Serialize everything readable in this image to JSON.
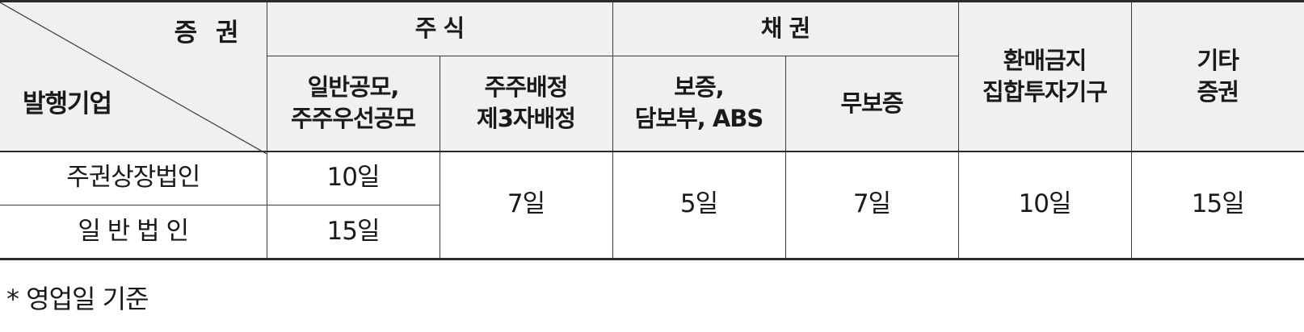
{
  "table": {
    "corner_top": "증 권",
    "corner_bottom": "발행기업",
    "group_stock": "주 식",
    "group_bond": "채 권",
    "col_fund": "환매금지\n집합투자기구",
    "col_other": "기타\n증권",
    "sub_public": "일반공모,\n주주우선공모",
    "sub_allot": "주주배정\n제3자배정",
    "sub_guaranteed": "보증,\n담보부, ABS",
    "sub_unsecured": "무보증",
    "rows": [
      {
        "label": "주권상장법인",
        "public": "10일"
      },
      {
        "label": "일 반 법 인",
        "public": "15일"
      }
    ],
    "merged": {
      "allot": "7일",
      "guaranteed": "5일",
      "unsecured": "7일",
      "fund": "10일",
      "other": "15일"
    }
  },
  "note": "* 영업일 기준"
}
